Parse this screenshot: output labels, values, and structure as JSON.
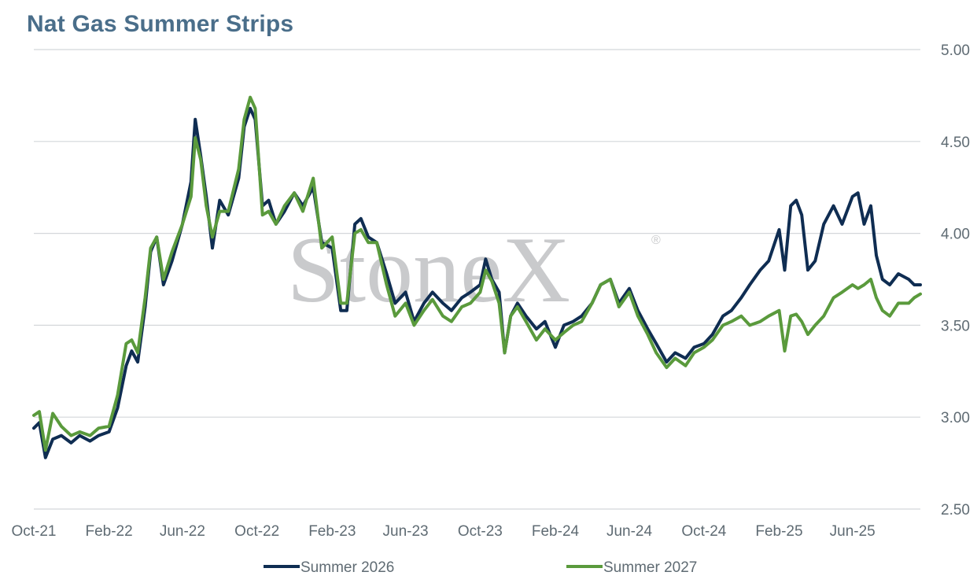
{
  "chart_data": {
    "type": "line",
    "title": "Nat Gas Summer Strips",
    "watermark": "StoneX",
    "watermark_mark": "®",
    "ylim": [
      2.5,
      5.0
    ],
    "y_ticks": [
      "2.50",
      "3.00",
      "3.50",
      "4.00",
      "4.50",
      "5.00"
    ],
    "x_range": [
      "2021-10-01",
      "2025-09-20"
    ],
    "x_ticks": [
      {
        "date": "2021-10-01",
        "label": "Oct-21"
      },
      {
        "date": "2022-02-01",
        "label": "Feb-22"
      },
      {
        "date": "2022-06-01",
        "label": "Jun-22"
      },
      {
        "date": "2022-10-01",
        "label": "Oct-22"
      },
      {
        "date": "2023-02-01",
        "label": "Feb-23"
      },
      {
        "date": "2023-06-01",
        "label": "Jun-23"
      },
      {
        "date": "2023-10-01",
        "label": "Oct-23"
      },
      {
        "date": "2024-02-01",
        "label": "Feb-24"
      },
      {
        "date": "2024-06-01",
        "label": "Jun-24"
      },
      {
        "date": "2024-10-01",
        "label": "Oct-24"
      },
      {
        "date": "2025-02-01",
        "label": "Feb-25"
      },
      {
        "date": "2025-06-01",
        "label": "Jun-25"
      }
    ],
    "grid": "horizontal",
    "legend": "bottom",
    "series": [
      {
        "name": "Summer 2026",
        "color": "#0f2d52",
        "points": [
          [
            "2021-10-01",
            2.94
          ],
          [
            "2021-10-10",
            2.97
          ],
          [
            "2021-10-20",
            2.78
          ],
          [
            "2021-11-01",
            2.88
          ],
          [
            "2021-11-15",
            2.9
          ],
          [
            "2021-12-01",
            2.86
          ],
          [
            "2021-12-15",
            2.9
          ],
          [
            "2022-01-01",
            2.87
          ],
          [
            "2022-01-15",
            2.9
          ],
          [
            "2022-02-01",
            2.92
          ],
          [
            "2022-02-15",
            3.05
          ],
          [
            "2022-03-01",
            3.28
          ],
          [
            "2022-03-10",
            3.36
          ],
          [
            "2022-03-20",
            3.3
          ],
          [
            "2022-04-01",
            3.6
          ],
          [
            "2022-04-10",
            3.9
          ],
          [
            "2022-04-20",
            3.98
          ],
          [
            "2022-05-01",
            3.72
          ],
          [
            "2022-05-15",
            3.85
          ],
          [
            "2022-06-01",
            4.05
          ],
          [
            "2022-06-15",
            4.28
          ],
          [
            "2022-06-22",
            4.62
          ],
          [
            "2022-07-01",
            4.42
          ],
          [
            "2022-07-10",
            4.2
          ],
          [
            "2022-07-20",
            3.92
          ],
          [
            "2022-08-01",
            4.18
          ],
          [
            "2022-08-15",
            4.1
          ],
          [
            "2022-09-01",
            4.3
          ],
          [
            "2022-09-10",
            4.58
          ],
          [
            "2022-09-20",
            4.68
          ],
          [
            "2022-09-28",
            4.62
          ],
          [
            "2022-10-10",
            4.15
          ],
          [
            "2022-10-20",
            4.18
          ],
          [
            "2022-11-01",
            4.05
          ],
          [
            "2022-11-15",
            4.12
          ],
          [
            "2022-12-01",
            4.22
          ],
          [
            "2022-12-15",
            4.15
          ],
          [
            "2023-01-01",
            4.25
          ],
          [
            "2023-01-15",
            3.95
          ],
          [
            "2023-02-01",
            3.92
          ],
          [
            "2023-02-15",
            3.58
          ],
          [
            "2023-02-25",
            3.58
          ],
          [
            "2023-03-10",
            4.05
          ],
          [
            "2023-03-20",
            4.08
          ],
          [
            "2023-04-01",
            3.98
          ],
          [
            "2023-04-15",
            3.95
          ],
          [
            "2023-05-01",
            3.78
          ],
          [
            "2023-05-15",
            3.62
          ],
          [
            "2023-06-01",
            3.68
          ],
          [
            "2023-06-15",
            3.52
          ],
          [
            "2023-07-01",
            3.62
          ],
          [
            "2023-07-15",
            3.68
          ],
          [
            "2023-08-01",
            3.62
          ],
          [
            "2023-08-15",
            3.58
          ],
          [
            "2023-09-01",
            3.65
          ],
          [
            "2023-09-15",
            3.68
          ],
          [
            "2023-10-01",
            3.72
          ],
          [
            "2023-10-10",
            3.86
          ],
          [
            "2023-10-20",
            3.75
          ],
          [
            "2023-11-01",
            3.68
          ],
          [
            "2023-11-10",
            3.35
          ],
          [
            "2023-11-20",
            3.55
          ],
          [
            "2023-12-01",
            3.62
          ],
          [
            "2023-12-15",
            3.55
          ],
          [
            "2024-01-01",
            3.48
          ],
          [
            "2024-01-15",
            3.52
          ],
          [
            "2024-02-01",
            3.38
          ],
          [
            "2024-02-15",
            3.5
          ],
          [
            "2024-03-01",
            3.52
          ],
          [
            "2024-03-15",
            3.55
          ],
          [
            "2024-04-01",
            3.62
          ],
          [
            "2024-04-15",
            3.72
          ],
          [
            "2024-05-01",
            3.75
          ],
          [
            "2024-05-15",
            3.62
          ],
          [
            "2024-06-01",
            3.7
          ],
          [
            "2024-06-15",
            3.58
          ],
          [
            "2024-07-01",
            3.48
          ],
          [
            "2024-07-15",
            3.4
          ],
          [
            "2024-08-01",
            3.3
          ],
          [
            "2024-08-15",
            3.35
          ],
          [
            "2024-09-01",
            3.32
          ],
          [
            "2024-09-15",
            3.38
          ],
          [
            "2024-10-01",
            3.4
          ],
          [
            "2024-10-15",
            3.45
          ],
          [
            "2024-11-01",
            3.55
          ],
          [
            "2024-11-15",
            3.58
          ],
          [
            "2024-12-01",
            3.65
          ],
          [
            "2024-12-15",
            3.72
          ],
          [
            "2025-01-01",
            3.8
          ],
          [
            "2025-01-15",
            3.85
          ],
          [
            "2025-02-01",
            4.02
          ],
          [
            "2025-02-10",
            3.8
          ],
          [
            "2025-02-20",
            4.15
          ],
          [
            "2025-03-01",
            4.18
          ],
          [
            "2025-03-10",
            4.1
          ],
          [
            "2025-03-20",
            3.8
          ],
          [
            "2025-04-01",
            3.85
          ],
          [
            "2025-04-15",
            4.05
          ],
          [
            "2025-05-01",
            4.15
          ],
          [
            "2025-05-15",
            4.05
          ],
          [
            "2025-06-01",
            4.2
          ],
          [
            "2025-06-10",
            4.22
          ],
          [
            "2025-06-20",
            4.05
          ],
          [
            "2025-07-01",
            4.15
          ],
          [
            "2025-07-10",
            3.88
          ],
          [
            "2025-07-20",
            3.75
          ],
          [
            "2025-08-01",
            3.72
          ],
          [
            "2025-08-15",
            3.78
          ],
          [
            "2025-09-01",
            3.75
          ],
          [
            "2025-09-10",
            3.72
          ],
          [
            "2025-09-20",
            3.72
          ]
        ]
      },
      {
        "name": "Summer 2027",
        "color": "#5a9a3c",
        "points": [
          [
            "2021-10-01",
            3.01
          ],
          [
            "2021-10-10",
            3.03
          ],
          [
            "2021-10-20",
            2.82
          ],
          [
            "2021-11-01",
            3.02
          ],
          [
            "2021-11-15",
            2.95
          ],
          [
            "2021-12-01",
            2.9
          ],
          [
            "2021-12-15",
            2.92
          ],
          [
            "2022-01-01",
            2.9
          ],
          [
            "2022-01-15",
            2.94
          ],
          [
            "2022-02-01",
            2.95
          ],
          [
            "2022-02-15",
            3.12
          ],
          [
            "2022-03-01",
            3.4
          ],
          [
            "2022-03-10",
            3.42
          ],
          [
            "2022-03-20",
            3.35
          ],
          [
            "2022-04-01",
            3.65
          ],
          [
            "2022-04-10",
            3.92
          ],
          [
            "2022-04-20",
            3.98
          ],
          [
            "2022-05-01",
            3.75
          ],
          [
            "2022-05-15",
            3.9
          ],
          [
            "2022-06-01",
            4.05
          ],
          [
            "2022-06-15",
            4.2
          ],
          [
            "2022-06-22",
            4.52
          ],
          [
            "2022-07-01",
            4.4
          ],
          [
            "2022-07-10",
            4.15
          ],
          [
            "2022-07-20",
            3.98
          ],
          [
            "2022-08-01",
            4.12
          ],
          [
            "2022-08-15",
            4.12
          ],
          [
            "2022-09-01",
            4.35
          ],
          [
            "2022-09-10",
            4.62
          ],
          [
            "2022-09-20",
            4.74
          ],
          [
            "2022-09-28",
            4.68
          ],
          [
            "2022-10-10",
            4.1
          ],
          [
            "2022-10-20",
            4.12
          ],
          [
            "2022-11-01",
            4.05
          ],
          [
            "2022-11-15",
            4.15
          ],
          [
            "2022-12-01",
            4.22
          ],
          [
            "2022-12-15",
            4.12
          ],
          [
            "2023-01-01",
            4.3
          ],
          [
            "2023-01-15",
            3.92
          ],
          [
            "2023-02-01",
            3.98
          ],
          [
            "2023-02-15",
            3.62
          ],
          [
            "2023-02-25",
            3.62
          ],
          [
            "2023-03-10",
            4.0
          ],
          [
            "2023-03-20",
            4.02
          ],
          [
            "2023-04-01",
            3.95
          ],
          [
            "2023-04-15",
            3.95
          ],
          [
            "2023-05-01",
            3.72
          ],
          [
            "2023-05-15",
            3.55
          ],
          [
            "2023-06-01",
            3.62
          ],
          [
            "2023-06-15",
            3.5
          ],
          [
            "2023-07-01",
            3.58
          ],
          [
            "2023-07-15",
            3.64
          ],
          [
            "2023-08-01",
            3.55
          ],
          [
            "2023-08-15",
            3.52
          ],
          [
            "2023-09-01",
            3.6
          ],
          [
            "2023-09-15",
            3.62
          ],
          [
            "2023-10-01",
            3.68
          ],
          [
            "2023-10-10",
            3.8
          ],
          [
            "2023-10-20",
            3.74
          ],
          [
            "2023-11-01",
            3.62
          ],
          [
            "2023-11-10",
            3.35
          ],
          [
            "2023-11-20",
            3.55
          ],
          [
            "2023-12-01",
            3.6
          ],
          [
            "2023-12-15",
            3.52
          ],
          [
            "2024-01-01",
            3.42
          ],
          [
            "2024-01-15",
            3.48
          ],
          [
            "2024-02-01",
            3.42
          ],
          [
            "2024-02-15",
            3.46
          ],
          [
            "2024-03-01",
            3.5
          ],
          [
            "2024-03-15",
            3.52
          ],
          [
            "2024-04-01",
            3.62
          ],
          [
            "2024-04-15",
            3.72
          ],
          [
            "2024-05-01",
            3.75
          ],
          [
            "2024-05-15",
            3.6
          ],
          [
            "2024-06-01",
            3.68
          ],
          [
            "2024-06-15",
            3.55
          ],
          [
            "2024-07-01",
            3.45
          ],
          [
            "2024-07-15",
            3.35
          ],
          [
            "2024-08-01",
            3.27
          ],
          [
            "2024-08-15",
            3.32
          ],
          [
            "2024-09-01",
            3.28
          ],
          [
            "2024-09-15",
            3.35
          ],
          [
            "2024-10-01",
            3.38
          ],
          [
            "2024-10-15",
            3.42
          ],
          [
            "2024-11-01",
            3.5
          ],
          [
            "2024-11-15",
            3.52
          ],
          [
            "2024-12-01",
            3.55
          ],
          [
            "2024-12-15",
            3.5
          ],
          [
            "2025-01-01",
            3.52
          ],
          [
            "2025-01-15",
            3.55
          ],
          [
            "2025-02-01",
            3.58
          ],
          [
            "2025-02-10",
            3.36
          ],
          [
            "2025-02-20",
            3.55
          ],
          [
            "2025-03-01",
            3.56
          ],
          [
            "2025-03-10",
            3.52
          ],
          [
            "2025-03-20",
            3.45
          ],
          [
            "2025-04-01",
            3.5
          ],
          [
            "2025-04-15",
            3.55
          ],
          [
            "2025-05-01",
            3.65
          ],
          [
            "2025-05-15",
            3.68
          ],
          [
            "2025-06-01",
            3.72
          ],
          [
            "2025-06-10",
            3.7
          ],
          [
            "2025-06-20",
            3.72
          ],
          [
            "2025-07-01",
            3.75
          ],
          [
            "2025-07-10",
            3.65
          ],
          [
            "2025-07-20",
            3.58
          ],
          [
            "2025-08-01",
            3.55
          ],
          [
            "2025-08-15",
            3.62
          ],
          [
            "2025-09-01",
            3.62
          ],
          [
            "2025-09-10",
            3.65
          ],
          [
            "2025-09-20",
            3.67
          ]
        ]
      }
    ]
  }
}
